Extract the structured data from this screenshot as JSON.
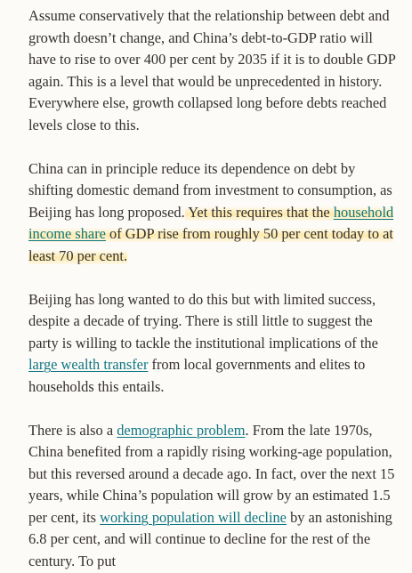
{
  "article": {
    "paragraphs": [
      [
        "Assume conservatively that the relationship between debt and growth doesn’t change, and China’s debt-to-GDP ratio will have to rise to over 400 per cent by 2035 if it is to double GDP again. This is a level that would be unprecedented in history. Everywhere else, growth collapsed long before debts reached levels close to this."
      ],
      [
        "China can in principle reduce its dependence on debt by shifting domestic demand from investment to consumption, as Beijing has long proposed.",
        " Yet this requires that the ",
        "household income share",
        " of GDP rise from roughly 50 per cent today to at least 70 per cent."
      ],
      [
        "Beijing has long wanted to do this but with limited success, despite a decade of trying. There is still little to suggest the party is willing to tackle the institutional implications of the ",
        "large wealth transfer",
        " from local governments and elites to households this entails."
      ],
      [
        "There is also a ",
        "demographic problem",
        ". From the late 1970s, China benefited from a rapidly rising working-age population, but this reversed around a decade ago. In fact, over the next 15 years, while China’s population will grow by an estimated 1.5 per cent, its ",
        "working population will decline",
        " by an astonishing 6.8 per cent, and will continue to decline for the rest of the century. To put"
      ]
    ]
  }
}
